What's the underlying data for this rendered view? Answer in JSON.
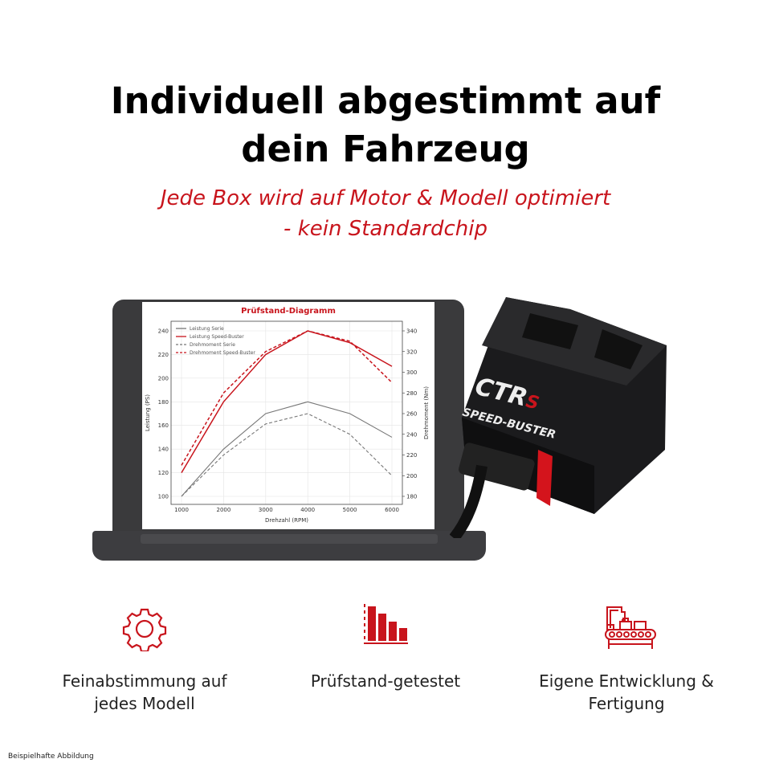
{
  "header": {
    "title_line1": "Individuell abgestimmt auf",
    "title_line2": "dein Fahrzeug",
    "subtitle_line1": "Jede Box wird auf Motor & Modell optimiert",
    "subtitle_line2": "- kein Standardchip"
  },
  "device": {
    "brand": "CTR",
    "brand_suffix": "S",
    "product": "SPEED-BUSTER"
  },
  "features": [
    {
      "icon": "gear-icon",
      "line1": "Feinabstimmung auf",
      "line2": "jedes Modell"
    },
    {
      "icon": "bar-chart-icon",
      "line1": "Prüfstand-getestet",
      "line2": ""
    },
    {
      "icon": "factory-conveyor-icon",
      "line1": "Eigene Entwicklung &",
      "line2": "Fertigung"
    }
  ],
  "footnote": "Beispielhafte Abbildung",
  "colors": {
    "accent": "#c8141c",
    "serie": "#777777"
  },
  "chart_data": {
    "type": "line",
    "title": "Prüfstand-Diagramm",
    "xlabel": "Drehzahl (RPM)",
    "ylabel": "Leistung (PS)",
    "y2label": "Drehmoment (Nm)",
    "x": [
      1000,
      2000,
      3000,
      4000,
      5000,
      6000
    ],
    "xticks": [
      "1000",
      "2000",
      "3000",
      "4000",
      "5000",
      "6000"
    ],
    "yticks": [
      "100",
      "120",
      "140",
      "160",
      "180",
      "200",
      "220",
      "240"
    ],
    "y2ticks": [
      "180",
      "200",
      "220",
      "240",
      "260",
      "280",
      "300",
      "320",
      "340"
    ],
    "ylim": [
      100,
      240
    ],
    "y2lim": [
      180,
      340
    ],
    "grid": true,
    "legend_placement": "top-left",
    "series": [
      {
        "name": "Leistung Serie",
        "axis": "left",
        "style": "solid",
        "color": "#777777",
        "values": [
          100,
          140,
          170,
          180,
          170,
          150
        ]
      },
      {
        "name": "Leistung Speed-Buster",
        "axis": "left",
        "style": "solid",
        "color": "#c8141c",
        "values": [
          120,
          180,
          220,
          240,
          230,
          210
        ]
      },
      {
        "name": "Drehmoment Serie",
        "axis": "right",
        "style": "dashed",
        "color": "#777777",
        "values": [
          180,
          220,
          250,
          260,
          240,
          200
        ]
      },
      {
        "name": "Drehmoment Speed-Buster",
        "axis": "right",
        "style": "dashed",
        "color": "#c8141c",
        "values": [
          210,
          280,
          320,
          340,
          330,
          290
        ]
      }
    ]
  }
}
